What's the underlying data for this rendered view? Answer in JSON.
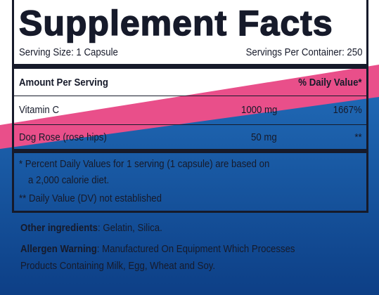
{
  "title": "Supplement Facts",
  "serving_size": "Serving Size: 1 Capsule",
  "servings_per_container": "Servings Per Container: 250",
  "header": {
    "amount": "Amount Per Serving",
    "daily_value": "% Daily Value*"
  },
  "rows": [
    {
      "name": "Vitamin C",
      "amount": "1000 mg",
      "dv": "1667%"
    },
    {
      "name": "Dog Rose (rose hips)",
      "amount": "50 mg",
      "dv": "**"
    }
  ],
  "footnotes": [
    "* Percent Daily Values for 1 serving (1 capsule) are based on",
    "a 2,000 calorie diet.",
    "** Daily Value (DV) not established"
  ],
  "other_ingredients": {
    "label": "Other ingredients",
    "text": ": Gelatin, Silica."
  },
  "allergen_warning": {
    "label": "Allergen Warning",
    "lines": [
      ": Manufactured On Equipment Which Processes",
      "Products Containing Milk, Egg, Wheat and Soy."
    ]
  }
}
